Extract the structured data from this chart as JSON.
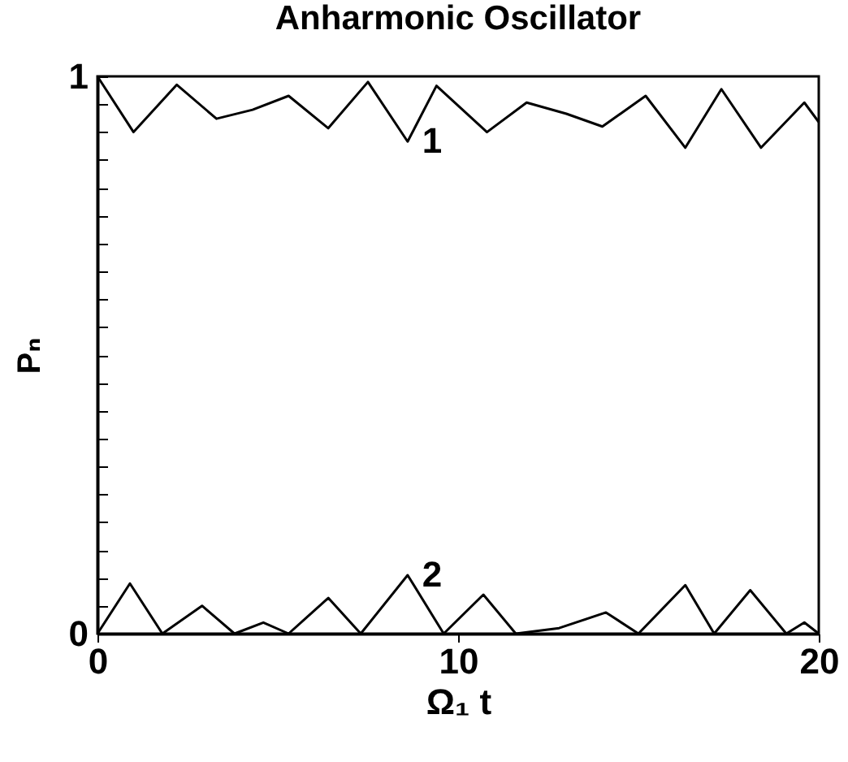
{
  "chart_data": {
    "type": "line",
    "title": "Anharmonic Oscillator",
    "xlabel": "Ω₁ t",
    "ylabel": "Pₙ",
    "xlim": [
      0,
      20
    ],
    "xticks": [
      0,
      10,
      20
    ],
    "ylim": [
      0,
      1
    ],
    "yticks": [
      0,
      {
        "value": 0.05,
        "label": null
      },
      {
        "value": 0.1,
        "label": null
      },
      {
        "value": 0.15,
        "label": null
      },
      {
        "value": 0.2,
        "label": null
      },
      {
        "value": 0.25,
        "label": null
      },
      {
        "value": 0.3,
        "label": null
      },
      {
        "value": 0.35,
        "label": null
      },
      {
        "value": 0.4,
        "label": null
      },
      {
        "value": 0.45,
        "label": null
      },
      {
        "value": 0.5,
        "label": null
      },
      {
        "value": 0.55,
        "label": null
      },
      {
        "value": 0.6,
        "label": null
      },
      {
        "value": 0.65,
        "label": null
      },
      {
        "value": 0.7,
        "label": null
      },
      {
        "value": 0.75,
        "label": null
      },
      {
        "value": 0.8,
        "label": null
      },
      {
        "value": 0.85,
        "label": null
      },
      {
        "value": 0.9,
        "label": null
      },
      {
        "value": 0.95,
        "label": null
      },
      1
    ],
    "grid": false,
    "marker": "none",
    "line_style": "solid",
    "series": [
      {
        "name": "1",
        "color": "#000000",
        "x": [
          0,
          1.0,
          2.2,
          3.3,
          4.3,
          5.3,
          6.4,
          7.5,
          8.6,
          9.4,
          10.8,
          11.9,
          13.0,
          14.0,
          15.2,
          16.3,
          17.3,
          18.4,
          19.6,
          20
        ],
        "values": [
          1.0,
          0.9,
          0.985,
          0.924,
          0.94,
          0.965,
          0.907,
          0.99,
          0.883,
          0.983,
          0.9,
          0.953,
          0.933,
          0.91,
          0.965,
          0.872,
          0.977,
          0.872,
          0.953,
          0.918
        ]
      },
      {
        "name": "2",
        "color": "#000000",
        "x": [
          0,
          0.9,
          1.8,
          2.9,
          3.8,
          4.6,
          5.3,
          6.4,
          7.3,
          8.6,
          9.6,
          10.7,
          11.6,
          12.8,
          14.1,
          15.0,
          16.3,
          17.1,
          18.1,
          19.1,
          19.6,
          20
        ],
        "values": [
          0,
          0.09,
          0,
          0.05,
          0,
          0.02,
          0,
          0.064,
          0,
          0.105,
          0,
          0.07,
          0,
          0.01,
          0.038,
          0,
          0.087,
          0,
          0.078,
          0,
          0.02,
          0
        ]
      }
    ]
  }
}
